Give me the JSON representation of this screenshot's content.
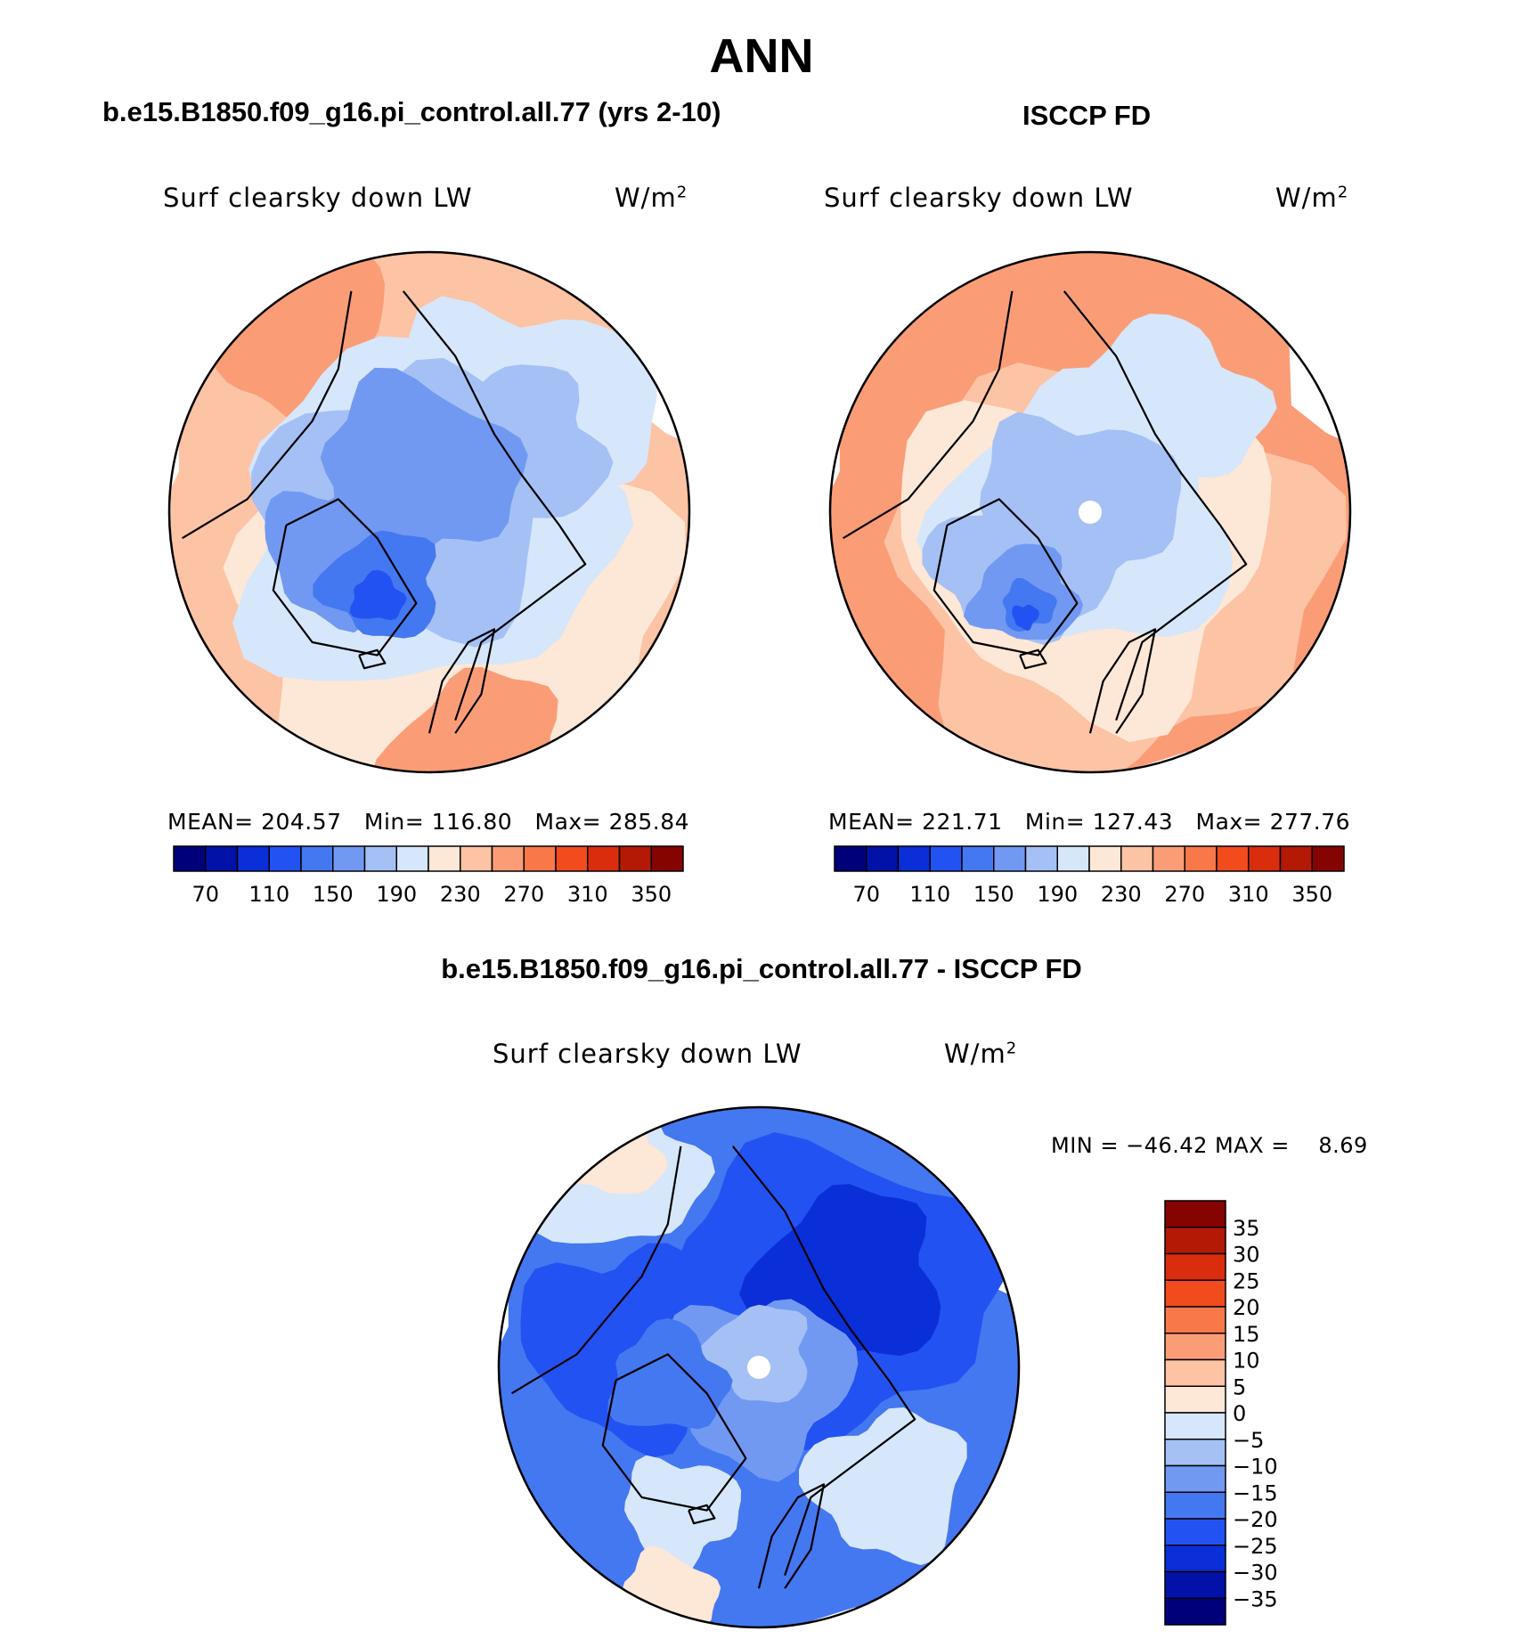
{
  "chart_data": {
    "type": "heatmap",
    "title": "ANN",
    "panels": [
      {
        "id": "model",
        "heading": "b.e15.B1850.f09_g16.pi_control.all.77 (yrs 2-10)",
        "variable": "Surf clearsky down LW",
        "units": "W/m",
        "units_exp": "2",
        "projection": "north polar stereographic",
        "stats": [
          {
            "label": "MEAN=",
            "value": "204.57"
          },
          {
            "label": "Min=",
            "value": "116.80"
          },
          {
            "label": "Max=",
            "value": "285.84"
          }
        ],
        "mean": 204.57,
        "min": 116.8,
        "max": 285.84,
        "has_pole_mask": false,
        "colorbar": {
          "orientation": "horizontal",
          "tick_labels": [
            "70",
            "110",
            "150",
            "190",
            "230",
            "270",
            "310",
            "350"
          ]
        }
      },
      {
        "id": "obs",
        "heading": "ISCCP FD",
        "variable": "Surf clearsky down LW",
        "units": "W/m",
        "units_exp": "2",
        "projection": "north polar stereographic",
        "stats": [
          {
            "label": "MEAN=",
            "value": "221.71"
          },
          {
            "label": "Min=",
            "value": "127.43"
          },
          {
            "label": "Max=",
            "value": "277.76"
          }
        ],
        "mean": 221.71,
        "min": 127.43,
        "max": 277.76,
        "has_pole_mask": true,
        "colorbar": {
          "orientation": "horizontal",
          "tick_labels": [
            "70",
            "110",
            "150",
            "190",
            "230",
            "270",
            "310",
            "350"
          ]
        }
      },
      {
        "id": "diff",
        "heading": "b.e15.B1850.f09_g16.pi_control.all.77 - ISCCP FD",
        "variable": "Surf clearsky down LW",
        "units": "W/m",
        "units_exp": "2",
        "projection": "north polar stereographic",
        "minmax_text": "MIN = −46.42 MAX =    8.69",
        "min": -46.42,
        "max": 8.69,
        "has_pole_mask": true,
        "colorbar": {
          "orientation": "vertical",
          "tick_labels": [
            "35",
            "30",
            "25",
            "20",
            "15",
            "10",
            "5",
            "0",
            "−5",
            "−10",
            "−15",
            "−20",
            "−25",
            "−30",
            "−35"
          ]
        }
      }
    ],
    "abs_levels": [
      70,
      90,
      110,
      130,
      150,
      170,
      190,
      210,
      230,
      250,
      270,
      290,
      310,
      330,
      350
    ],
    "diff_levels": [
      -35,
      -30,
      -25,
      -20,
      -15,
      -10,
      -5,
      0,
      5,
      10,
      15,
      20,
      25,
      30,
      35
    ],
    "colors": [
      "#00007a",
      "#0012a8",
      "#0a2fd8",
      "#2352f2",
      "#4478f0",
      "#7199f2",
      "#a4c0f5",
      "#d6e6fb",
      "#fde7d6",
      "#fcc3a4",
      "#fa9d77",
      "#f87849",
      "#f24b1d",
      "#da2d0d",
      "#b31905",
      "#850300"
    ]
  }
}
